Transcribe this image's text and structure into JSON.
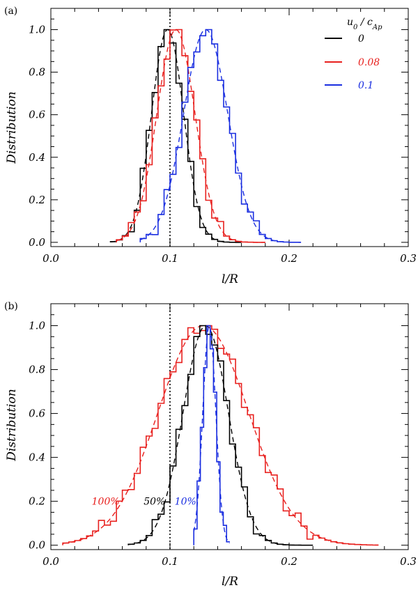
{
  "chart_data": [
    {
      "type": "line",
      "panel_label": "(a)",
      "xlabel": "l/R",
      "ylabel": "Distribution",
      "xlim": [
        0.0,
        0.3
      ],
      "ylim": [
        -0.02,
        1.1
      ],
      "xticks": [
        0.0,
        0.1,
        0.2,
        0.3
      ],
      "xtick_labels": [
        "0.0",
        "0.1",
        "0.2",
        "0.3"
      ],
      "yticks": [
        0.0,
        0.2,
        0.4,
        0.6,
        0.8,
        1.0
      ],
      "ytick_labels": [
        "0.0",
        "0.2",
        "0.4",
        "0.6",
        "0.8",
        "1.0"
      ],
      "reference_line_x": 0.1,
      "legend_title": "u0 / cAp",
      "legend_position": "top-right",
      "series": [
        {
          "name": "0",
          "color": "#000000",
          "mean": 0.098,
          "sigma": 0.0135,
          "xmin": 0.05,
          "xmax": 0.16
        },
        {
          "name": "0.08",
          "color": "#e8201e",
          "mean": 0.105,
          "sigma": 0.016,
          "xmin": 0.055,
          "xmax": 0.18
        },
        {
          "name": "0.1",
          "color": "#1a2ee0",
          "mean": 0.13,
          "sigma": 0.0185,
          "xmin": 0.075,
          "xmax": 0.21
        }
      ],
      "series_notes": "Each series drawn as a normalized histogram (solid stepped line) plus a dashed Gaussian fit with the listed mean and sigma."
    },
    {
      "type": "line",
      "panel_label": "(b)",
      "xlabel": "l/R",
      "ylabel": "Distribution",
      "xlim": [
        0.0,
        0.3
      ],
      "ylim": [
        -0.02,
        1.1
      ],
      "xticks": [
        0.0,
        0.1,
        0.2,
        0.3
      ],
      "xtick_labels": [
        "0.0",
        "0.1",
        "0.2",
        "0.3"
      ],
      "yticks": [
        0.0,
        0.2,
        0.4,
        0.6,
        0.8,
        1.0
      ],
      "ytick_labels": [
        "0.0",
        "0.2",
        "0.4",
        "0.6",
        "0.8",
        "1.0"
      ],
      "reference_line_x": 0.1,
      "series": [
        {
          "name": "100%",
          "color": "#e8201e",
          "mean": 0.128,
          "sigma": 0.038,
          "xmin": 0.01,
          "xmax": 0.275
        },
        {
          "name": "50%",
          "color": "#000000",
          "mean": 0.13,
          "sigma": 0.019,
          "xmin": 0.065,
          "xmax": 0.22
        },
        {
          "name": "10%",
          "color": "#1a2ee0",
          "mean": 0.133,
          "sigma": 0.0055,
          "xmin": 0.12,
          "xmax": 0.15
        }
      ],
      "annotations": [
        {
          "text": "100%",
          "color": "#e8201e",
          "x": 0.046,
          "y": 0.2
        },
        {
          "text": "50%",
          "color": "#000000",
          "x": 0.087,
          "y": 0.2
        },
        {
          "text": "10%",
          "color": "#1a2ee0",
          "x": 0.113,
          "y": 0.2
        }
      ]
    }
  ]
}
